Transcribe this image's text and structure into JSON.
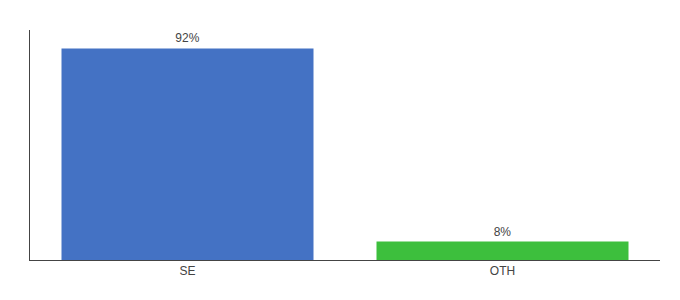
{
  "chart_data": {
    "type": "bar",
    "categories": [
      "SE",
      "OTH"
    ],
    "values": [
      92,
      8
    ],
    "value_labels": [
      "92%",
      "8%"
    ],
    "data_labels": true,
    "colors": [
      "#4472c4",
      "#3dbf3d"
    ],
    "ylim": [
      0,
      100
    ],
    "grid": false,
    "tick_labels": "x"
  }
}
